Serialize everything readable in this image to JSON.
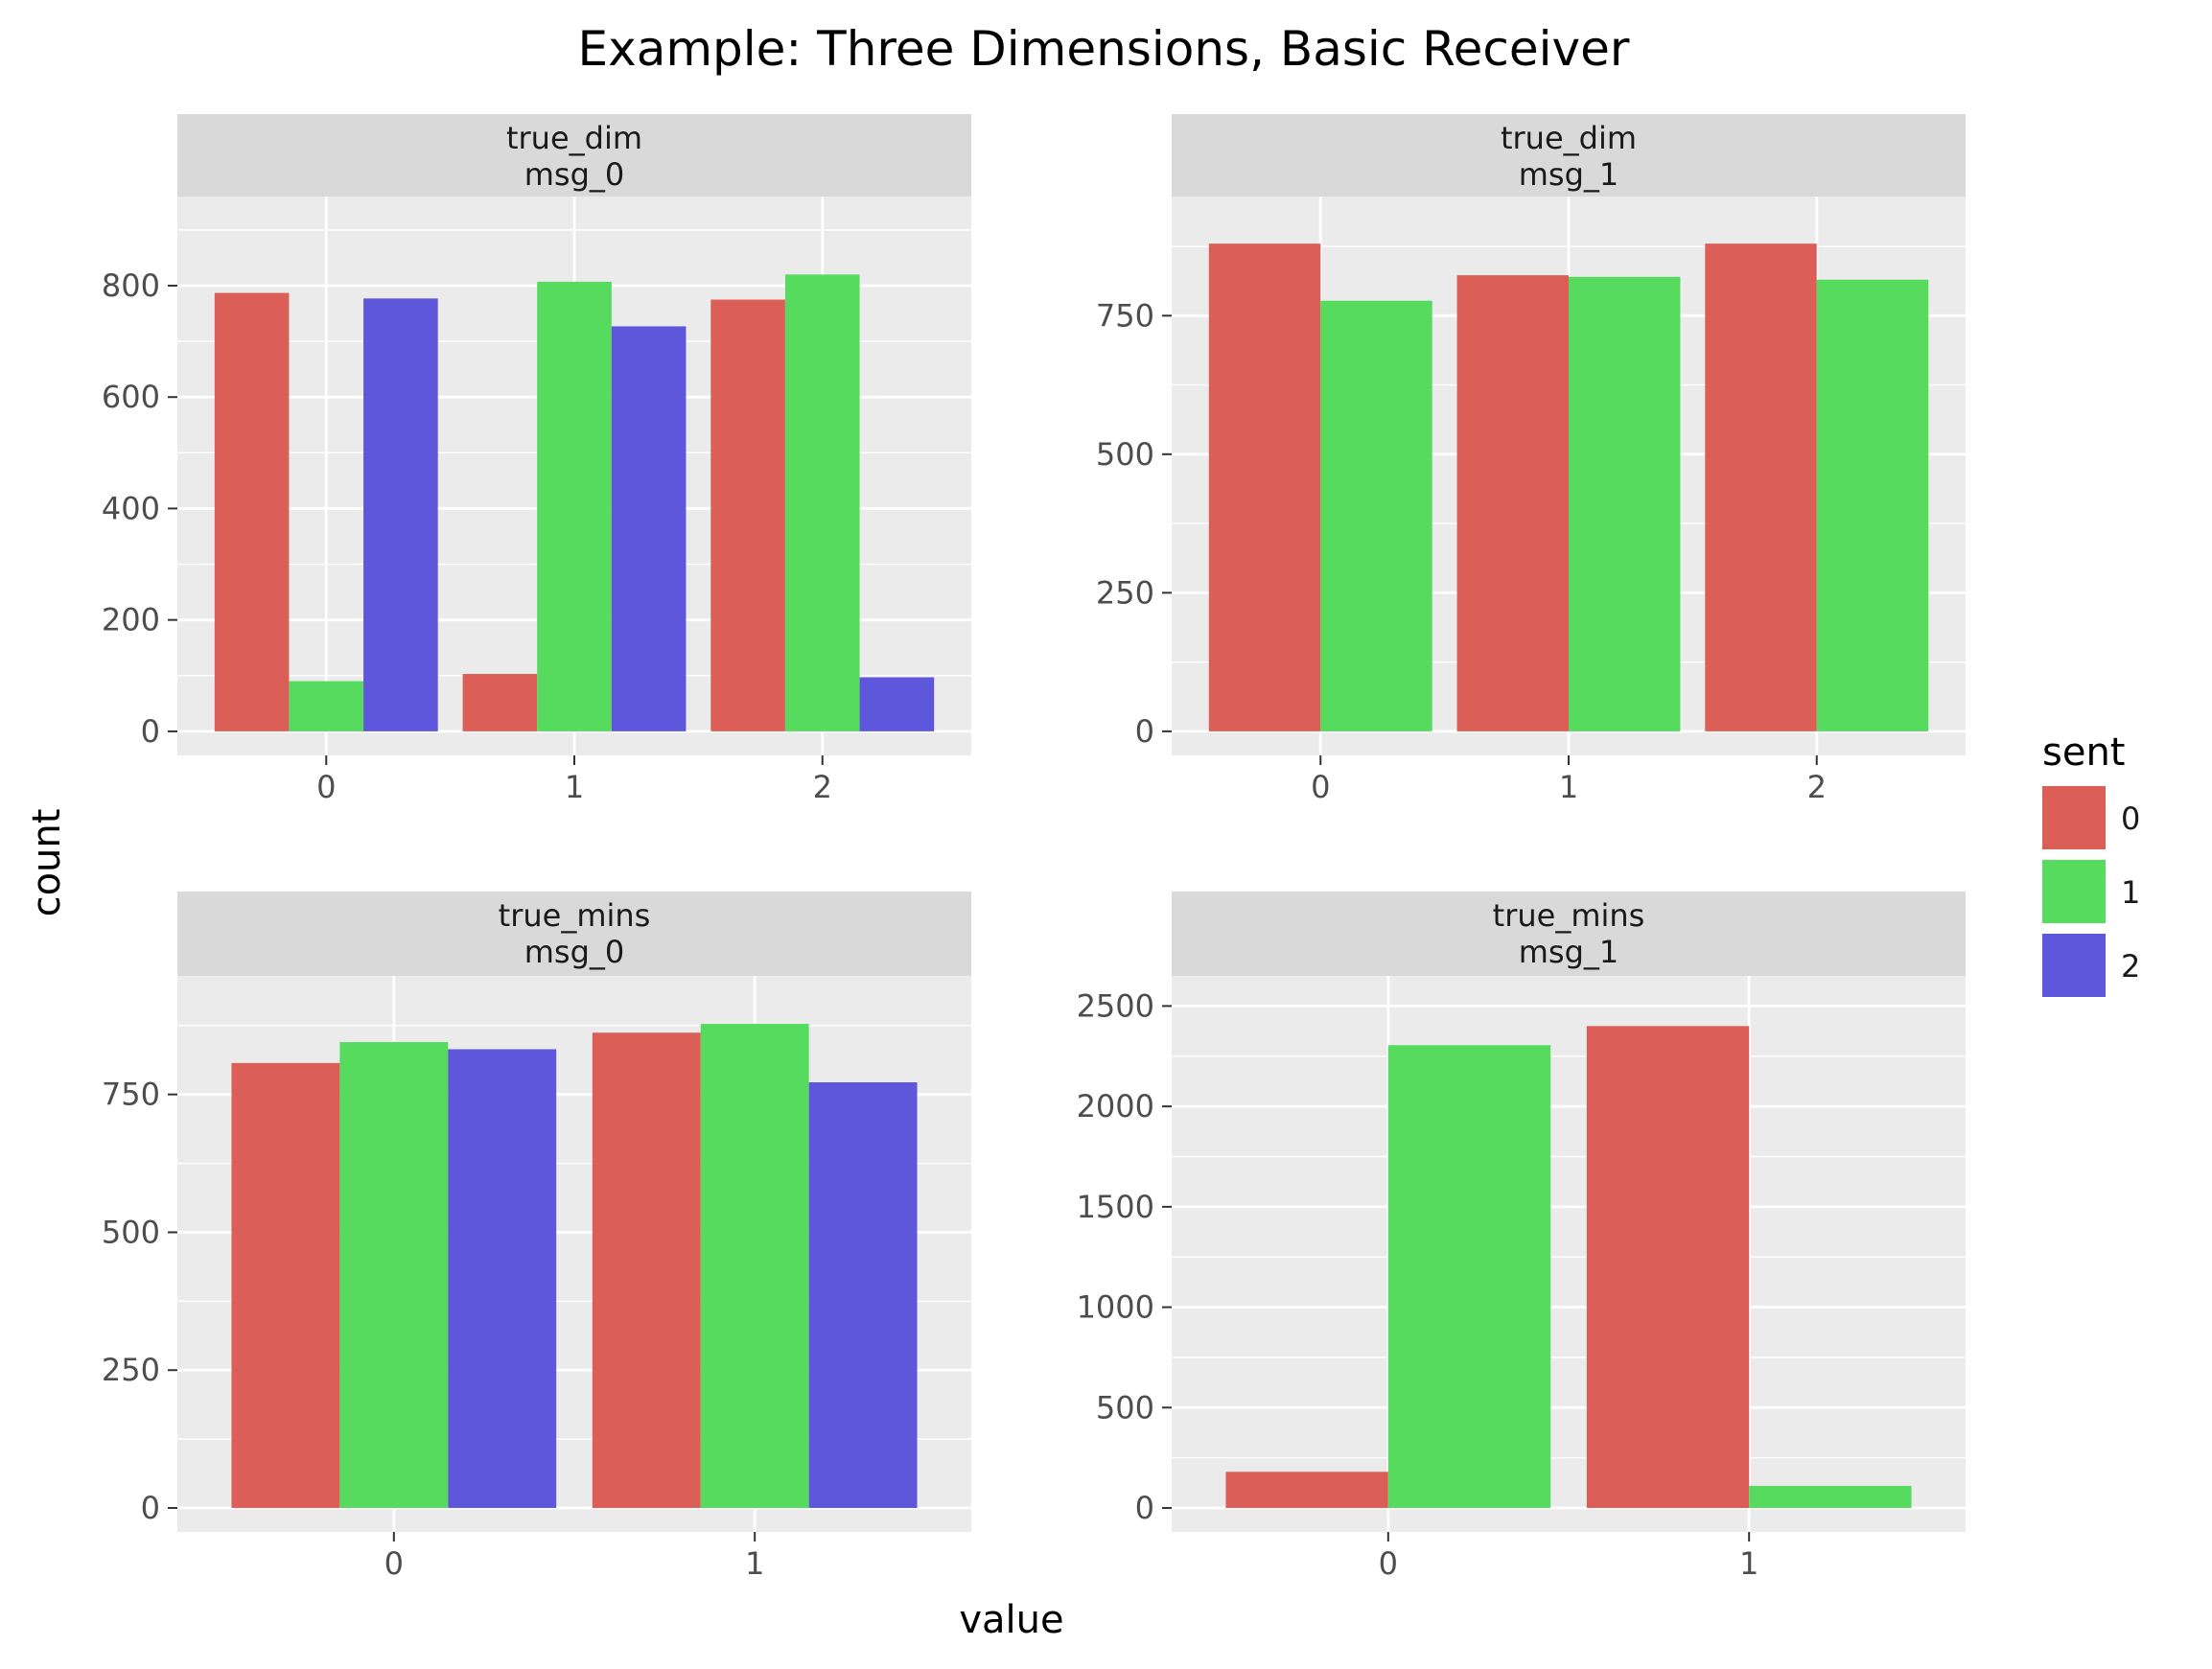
{
  "title": "Example: Three Dimensions, Basic Receiver",
  "xlabel": "value",
  "ylabel": "count",
  "legend": {
    "title": "sent",
    "position": "right",
    "items": [
      {
        "label": "0",
        "color": "#DB5F57"
      },
      {
        "label": "1",
        "color": "#57DB5F"
      },
      {
        "label": "2",
        "color": "#5F57DB"
      }
    ]
  },
  "panel_colors": {
    "background": "#EBEBEB",
    "strip": "#D9D9D9",
    "grid": "#FFFFFF",
    "text": "#1A1A1A",
    "tick_text": "#4D4D4D"
  },
  "chart_data": [
    {
      "type": "bar",
      "facet": [
        "true_dim",
        "msg_0"
      ],
      "categories": [
        "0",
        "1",
        "2"
      ],
      "ylim": [
        0,
        960
      ],
      "yticks": [
        0,
        200,
        400,
        600,
        800
      ],
      "series": [
        {
          "name": "0",
          "values": [
            787,
            103,
            775
          ]
        },
        {
          "name": "1",
          "values": [
            90,
            807,
            820
          ]
        },
        {
          "name": "2",
          "values": [
            777,
            727,
            97
          ]
        }
      ]
    },
    {
      "type": "bar",
      "facet": [
        "true_dim",
        "msg_1"
      ],
      "categories": [
        "0",
        "1",
        "2"
      ],
      "ylim": [
        0,
        965
      ],
      "yticks": [
        0,
        250,
        500,
        750
      ],
      "series": [
        {
          "name": "0",
          "values": [
            880,
            823,
            880
          ]
        },
        {
          "name": "1",
          "values": [
            777,
            820,
            815
          ]
        }
      ]
    },
    {
      "type": "bar",
      "facet": [
        "true_mins",
        "msg_0"
      ],
      "categories": [
        "0",
        "1"
      ],
      "ylim": [
        0,
        965
      ],
      "yticks": [
        0,
        250,
        500,
        750
      ],
      "series": [
        {
          "name": "0",
          "values": [
            807,
            862
          ]
        },
        {
          "name": "1",
          "values": [
            845,
            878
          ]
        },
        {
          "name": "2",
          "values": [
            832,
            772
          ]
        }
      ]
    },
    {
      "type": "bar",
      "facet": [
        "true_mins",
        "msg_1"
      ],
      "categories": [
        "0",
        "1"
      ],
      "ylim": [
        0,
        2650
      ],
      "yticks": [
        0,
        500,
        1000,
        1500,
        2000,
        2500
      ],
      "series": [
        {
          "name": "0",
          "values": [
            180,
            2400
          ]
        },
        {
          "name": "1",
          "values": [
            2305,
            110
          ]
        }
      ]
    }
  ]
}
